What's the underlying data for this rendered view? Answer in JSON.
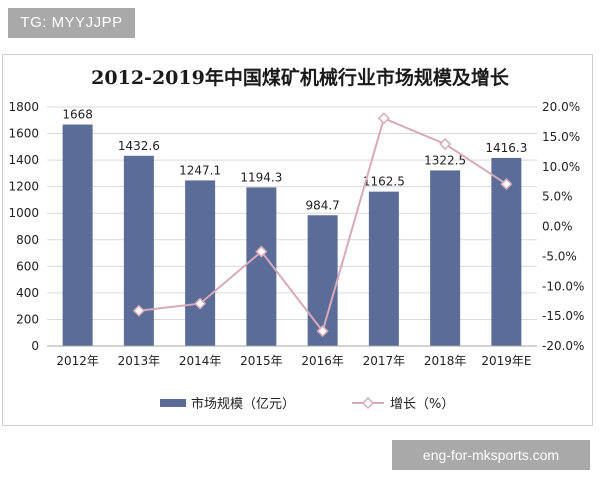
{
  "watermark_top": "TG: MYYJJPP",
  "watermark_bottom": "eng-for-mksports.com",
  "chart_data": {
    "type": "bar+line",
    "title": "2012-2019年中国煤矿机械行业市场规模及增长",
    "categories": [
      "2012年",
      "2013年",
      "2014年",
      "2015年",
      "2016年",
      "2017年",
      "2018年",
      "2019年E"
    ],
    "series": [
      {
        "name": "市场规模（亿元）",
        "type": "bar",
        "axis": "left",
        "color": "#5b6c99",
        "values": [
          1668,
          1432.6,
          1247.1,
          1194.3,
          984.7,
          1162.5,
          1322.5,
          1416.3
        ],
        "labels": [
          "1668",
          "1432.6",
          "1247.1",
          "1194.3",
          "984.7",
          "1162.5",
          "1322.5",
          "1416.3"
        ]
      },
      {
        "name": "增长（%）",
        "type": "line",
        "axis": "right",
        "color": "#d7aab8",
        "values": [
          null,
          -14.1,
          -12.9,
          -4.2,
          -17.5,
          18.1,
          13.8,
          7.1
        ]
      }
    ],
    "y_left": {
      "min": 0,
      "max": 1800,
      "ticks": [
        0,
        200,
        400,
        600,
        800,
        1000,
        1200,
        1400,
        1600,
        1800
      ]
    },
    "y_right": {
      "min": -20,
      "max": 20,
      "ticks": [
        -20,
        -15,
        -10,
        -5,
        0,
        5,
        10,
        15,
        20
      ],
      "tick_labels": [
        "-20.0%",
        "-15.0%",
        "-10.0%",
        "-5.0%",
        "0.0%",
        "5.0%",
        "10.0%",
        "15.0%",
        "20.0%"
      ]
    },
    "grid": true,
    "legend": "bottom"
  }
}
